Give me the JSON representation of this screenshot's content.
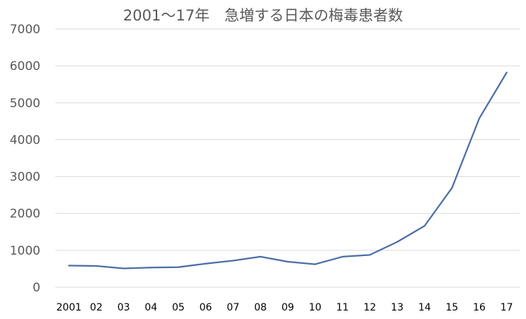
{
  "chart_data": {
    "type": "line",
    "title": "2001〜17年　急増する日本の梅毒患者数",
    "xlabel": "",
    "ylabel": "",
    "categories": [
      "2001",
      "02",
      "03",
      "04",
      "05",
      "06",
      "07",
      "08",
      "09",
      "10",
      "11",
      "12",
      "13",
      "14",
      "15",
      "16",
      "17"
    ],
    "series": [
      {
        "values": [
          585,
          575,
          509,
          533,
          543,
          637,
          719,
          827,
          691,
          621,
          827,
          875,
          1228,
          1661,
          2690,
          4575,
          5820
        ]
      }
    ],
    "ylim": [
      0,
      7000
    ],
    "yticks": [
      0,
      1000,
      2000,
      3000,
      4000,
      5000,
      6000,
      7000
    ],
    "grid": true,
    "legend": "none",
    "colors": {
      "line": "#4a6fa5",
      "grid": "#d9d9d9",
      "axis": "#d9d9d9"
    }
  }
}
